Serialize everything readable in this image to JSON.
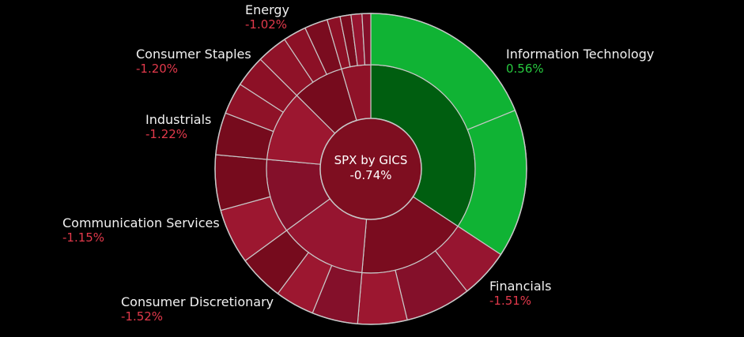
{
  "chart_data": {
    "type": "sunburst",
    "title": "SPX by GICS",
    "center_value": "-0.74%",
    "colors": {
      "positive": "#10b334",
      "positive_dark": "#005e10",
      "negative_text": "#e2394b",
      "positive_text": "#27c93f",
      "separator": "#c8c8c8"
    },
    "sectors": [
      {
        "name": "Information Technology",
        "change_label": "0.56%",
        "change": 0.56,
        "weight": 26.5
      },
      {
        "name": "Financials",
        "change_label": "-1.51%",
        "change": -1.51,
        "weight": 13.2
      },
      {
        "name": "Consumer Discretionary",
        "change_label": "-1.52%",
        "change": -1.52,
        "weight": 10.5
      },
      {
        "name": "Communication Services",
        "change_label": "-1.15%",
        "change": -1.15,
        "weight": 8.9
      },
      {
        "name": "Industrials",
        "change_label": "-1.22%",
        "change": -1.22,
        "weight": 8.5
      },
      {
        "name": "Consumer Staples",
        "change_label": "-1.20%",
        "change": -1.2,
        "weight": 6.2
      },
      {
        "name": "Energy",
        "change_label": "-1.02%",
        "change": -1.02,
        "weight": 3.5
      }
    ]
  }
}
